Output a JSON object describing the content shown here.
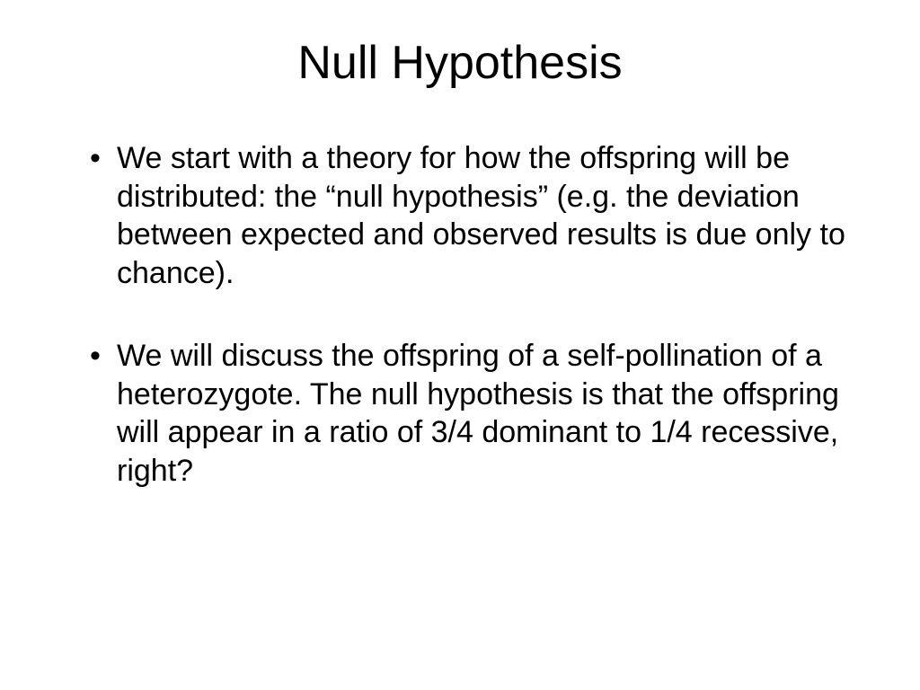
{
  "slide": {
    "title": "Null Hypothesis",
    "title_fontsize": 52,
    "title_align": "center",
    "background_color": "#ffffff",
    "text_color": "#000000",
    "font_family": "Arial, Helvetica, sans-serif",
    "bullets": [
      {
        "text": "We start with a theory for how the offspring will be distributed: the “null hypothesis” (e.g. the deviation between expected and observed results is due only to chance)."
      },
      {
        "text": "We will discuss the offspring of a self-pollination of a heterozygote.  The null hypothesis is that the offspring will appear in a ratio of 3/4 dominant to 1/4 recessive, right?"
      }
    ],
    "bullet_fontsize": 34,
    "bullet_line_height": 1.25,
    "bullet_marker": "•"
  }
}
